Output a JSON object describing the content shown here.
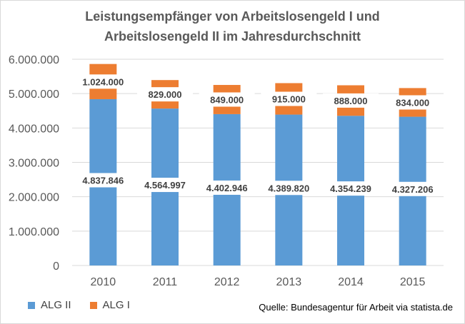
{
  "chart_data": {
    "type": "bar",
    "stacked": true,
    "title_lines": [
      "Leistungsempfänger von Arbeitslosengeld I und",
      "Arbeitslosengeld II im Jahresdurchschnitt"
    ],
    "categories": [
      "2010",
      "2011",
      "2012",
      "2013",
      "2014",
      "2015"
    ],
    "series": [
      {
        "name": "ALG II",
        "color": "#5b9bd5",
        "values": [
          4837846,
          4564997,
          4402946,
          4389820,
          4354239,
          4327206
        ],
        "labels": [
          "4.837.846",
          "4.564.997",
          "4.402.946",
          "4.389.820",
          "4.354.239",
          "4.327.206"
        ]
      },
      {
        "name": "ALG I",
        "color": "#ed7d31",
        "values": [
          1024000,
          829000,
          849000,
          915000,
          888000,
          834000
        ],
        "labels": [
          "1.024.000",
          "829.000",
          "849.000",
          "915.000",
          "888.000",
          "834.000"
        ]
      }
    ],
    "y_ticks": [
      0,
      1000000,
      2000000,
      3000000,
      4000000,
      5000000,
      6000000
    ],
    "y_tick_labels": [
      "0",
      "1.000.000",
      "2.000.000",
      "3.000.000",
      "4.000.000",
      "5.000.000",
      "6.000.000"
    ],
    "ylim": [
      0,
      6000000
    ],
    "grid": true,
    "legend_position": "bottom-left",
    "source": "Quelle: Bundesagentur für Arbeit via statista.de"
  }
}
